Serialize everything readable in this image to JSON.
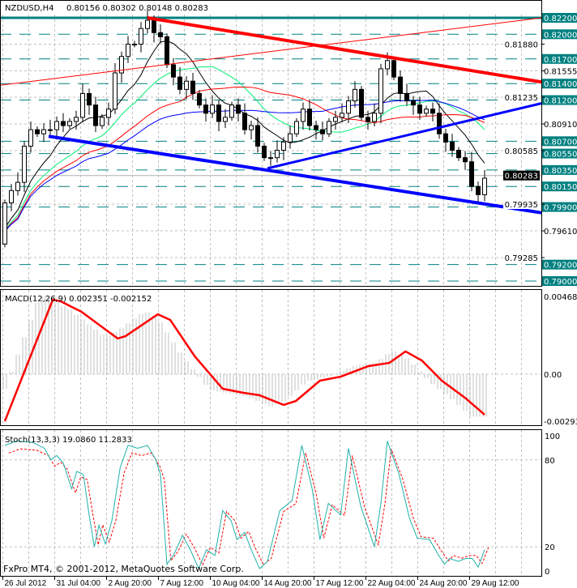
{
  "header": {
    "symbol_tf": "NZDUSD,H4",
    "ohlc": "0.80156 0.80302 0.80148 0.80283"
  },
  "macd_header": "MACD(12,26,9) 0.002351 -0.002152",
  "stoch_header": "Stoch(13,3,3) 19.0860 11.2833",
  "copyright": "FxPro MT4, © 2001-2012, MetaQuotes Software Corp.",
  "colors": {
    "level": "#008080",
    "candle_bear": "#000000",
    "candle_bull": "#ffffff",
    "trend_red": "#ff0000",
    "trend_blue": "#0000ff",
    "grid": "#c0c0c0",
    "stoch_main": "#20b2aa",
    "stoch_signal": "#ff0000",
    "macd_signal": "#ff0000",
    "macd_hist": "#c0c0c0"
  },
  "chart_data": [
    {
      "type": "candlestick",
      "title": "NZDUSD,H4",
      "ylim": [
        0.79,
        0.822
      ],
      "closes": [
        0.7995,
        0.801,
        0.802,
        0.8064,
        0.8084,
        0.8079,
        0.8084,
        0.8084,
        0.8094,
        0.8089,
        0.8094,
        0.8099,
        0.8128,
        0.8114,
        0.8089,
        0.8099,
        0.8109,
        0.8153,
        0.8173,
        0.8188,
        0.8188,
        0.8207,
        0.8217,
        0.8202,
        0.8197,
        0.8163,
        0.8148,
        0.8133,
        0.8143,
        0.8128,
        0.8114,
        0.8104,
        0.8114,
        0.8094,
        0.8099,
        0.8114,
        0.8104,
        0.8084,
        0.8089,
        0.8064,
        0.805,
        0.805,
        0.8059,
        0.8069,
        0.8079,
        0.8094,
        0.8109,
        0.8089,
        0.8084,
        0.8079,
        0.8094,
        0.8099,
        0.8104,
        0.8119,
        0.8133,
        0.8099,
        0.8094,
        0.8104,
        0.8158,
        0.8168,
        0.8148,
        0.8128,
        0.8119,
        0.8114,
        0.8104,
        0.8109,
        0.8104,
        0.8079,
        0.8069,
        0.8059,
        0.805,
        0.8045,
        0.8015,
        0.8005,
        0.8025
      ],
      "moving_averages": [
        {
          "period": 8,
          "color": "#000000"
        },
        {
          "period": 16,
          "color": "#00ee77"
        },
        {
          "period": 28,
          "color": "#ff0000"
        },
        {
          "period": 50,
          "color": "#0000ff"
        }
      ],
      "levels": [
        "0.82200",
        "0.82000",
        "0.81700",
        "0.81400",
        "0.81200",
        "0.80700",
        "0.80550",
        "0.80350",
        "0.80150",
        "0.79900",
        "0.79200",
        "0.79000"
      ],
      "axis_ticks": [
        "0.81880",
        "0.81555",
        "0.81235",
        "0.80910",
        "0.80585",
        "0.79935",
        "0.79610",
        "0.79285"
      ],
      "current_price": "0.80283",
      "trendlines": [
        {
          "name": "resistance-red",
          "color": "#ff0000",
          "width": 4,
          "from": [
            22,
            0.822
          ],
          "to": [
            82.75,
            0.8142
          ]
        },
        {
          "name": "rising-red-thin",
          "color": "#ff0000",
          "width": 1,
          "from": [
            -0.75,
            0.8138
          ],
          "to": [
            82.75,
            0.822
          ]
        },
        {
          "name": "support-blue-lower",
          "color": "#0000ff",
          "width": 4,
          "from": [
            6.75,
            0.8076
          ],
          "to": [
            82.75,
            0.7983
          ]
        },
        {
          "name": "support-blue-upper",
          "color": "#0000ff",
          "width": 3,
          "from": [
            40.5,
            0.8037
          ],
          "to": [
            82.75,
            0.8116
          ]
        }
      ]
    },
    {
      "type": "line",
      "title": "MACD(12,26,9)",
      "ylim": [
        -0.00293,
        0.00468
      ],
      "tick_labels": [
        "0.00468",
        "0.00",
        "-0.00293"
      ],
      "signal": [
        [
          0,
          -0.00283
        ],
        [
          7.4,
          0.00449
        ],
        [
          8.6,
          0.00439
        ],
        [
          11.8,
          0.00376
        ],
        [
          17.4,
          0.00215
        ],
        [
          18.6,
          0.00229
        ],
        [
          23.6,
          0.00361
        ],
        [
          25.5,
          0.00327
        ],
        [
          29.3,
          0.00107
        ],
        [
          33.6,
          -0.00088
        ],
        [
          36.8,
          -0.00112
        ],
        [
          39.3,
          -0.00127
        ],
        [
          43,
          -0.00185
        ],
        [
          44.9,
          -0.00161
        ],
        [
          48.6,
          -0.00039
        ],
        [
          51.8,
          -0.00015
        ],
        [
          56.1,
          0.00049
        ],
        [
          59.3,
          0.00068
        ],
        [
          61.8,
          0.00137
        ],
        [
          64.3,
          0.00083
        ],
        [
          67.4,
          -0.00039
        ],
        [
          71.1,
          -0.00146
        ],
        [
          74,
          -0.00244
        ]
      ]
    },
    {
      "type": "line",
      "title": "Stoch(13,3,3)",
      "ylim": [
        0,
        100
      ],
      "tick_labels": [
        "100",
        "80",
        "20",
        "0"
      ],
      "main": [
        [
          0,
          90
        ],
        [
          1.8,
          93
        ],
        [
          4.3,
          92
        ],
        [
          6.1,
          88
        ],
        [
          7.1,
          80
        ],
        [
          8,
          83
        ],
        [
          9,
          78
        ],
        [
          10.3,
          60
        ],
        [
          11.1,
          72
        ],
        [
          12.1,
          70
        ],
        [
          13,
          42
        ],
        [
          13.8,
          20
        ],
        [
          14.5,
          35
        ],
        [
          15.5,
          22
        ],
        [
          16.5,
          38
        ],
        [
          17.8,
          75
        ],
        [
          19,
          90
        ],
        [
          20.5,
          88
        ],
        [
          22,
          90
        ],
        [
          23.3,
          80
        ],
        [
          24,
          70
        ],
        [
          25,
          8
        ],
        [
          26.1,
          15
        ],
        [
          27.4,
          28
        ],
        [
          28.6,
          18
        ],
        [
          29.9,
          5
        ],
        [
          31.1,
          18
        ],
        [
          32.4,
          14
        ],
        [
          33.6,
          45
        ],
        [
          34.9,
          38
        ],
        [
          35.8,
          25
        ],
        [
          37,
          30
        ],
        [
          38,
          18
        ],
        [
          39.3,
          5
        ],
        [
          40.5,
          10
        ],
        [
          42.4,
          45
        ],
        [
          44.3,
          52
        ],
        [
          45.8,
          90
        ],
        [
          47.4,
          60
        ],
        [
          48.6,
          25
        ],
        [
          49.9,
          50
        ],
        [
          51.8,
          42
        ],
        [
          53,
          88
        ],
        [
          54.9,
          48
        ],
        [
          57,
          20
        ],
        [
          58,
          50
        ],
        [
          59,
          93
        ],
        [
          60.8,
          70
        ],
        [
          62.4,
          40
        ],
        [
          63.6,
          26
        ],
        [
          65.5,
          25
        ],
        [
          66.8,
          15
        ],
        [
          67.8,
          8
        ],
        [
          68.6,
          12
        ],
        [
          69.9,
          10
        ],
        [
          71.1,
          12
        ],
        [
          72.1,
          12
        ],
        [
          73,
          6
        ],
        [
          74,
          18
        ]
      ]
    }
  ],
  "time_axis": [
    "26 Jul 2012",
    "31 Jul 04:00",
    "2 Aug 20:00",
    "7 Aug 12:00",
    "10 Aug 04:00",
    "14 Aug 20:00",
    "17 Aug 12:00",
    "22 Aug 04:00",
    "24 Aug 20:00",
    "29 Aug 12:00"
  ]
}
